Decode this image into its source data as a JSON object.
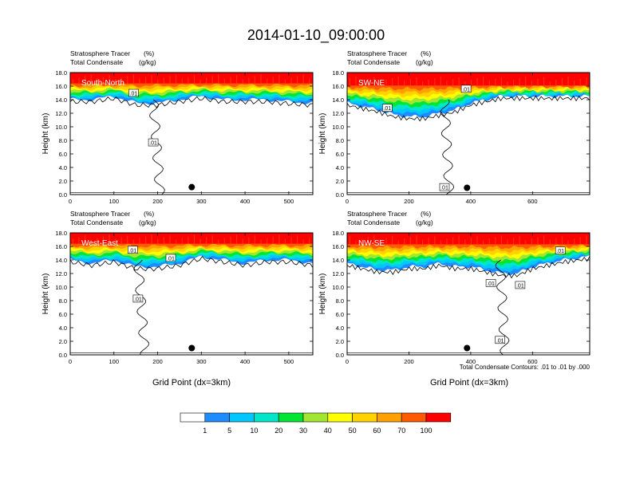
{
  "title": "2014-01-10_09:00:00",
  "panel_header": {
    "line1_left": "Stratosphere Tracer",
    "line1_right": "(%)",
    "line2_left": "Total Condensate",
    "line2_right": "(g/kg)"
  },
  "ylabel": "Height (km)",
  "xlabel": "Grid Point (dx=3km)",
  "contour_note": "Total Condensate Contours: .01 to .01 by .000",
  "contour_label": ".01",
  "colors": {
    "levels": [
      "#ffffff",
      "#1e8cff",
      "#00c8ff",
      "#00e6c8",
      "#00e632",
      "#a0e632",
      "#ffff00",
      "#ffd200",
      "#ffa000",
      "#ff5a00",
      "#ff0000"
    ],
    "contour": "#000000",
    "marker": "#000000"
  },
  "chart_data": [
    {
      "type": "heatmap",
      "name": "South-North",
      "xlim": [
        0,
        555
      ],
      "ylim": [
        0,
        18
      ],
      "xticks": [
        0,
        100,
        200,
        300,
        400,
        500
      ],
      "yticks": [
        0,
        2,
        4,
        6,
        8,
        10,
        12,
        14,
        16,
        18
      ],
      "tracer_band": {
        "x": [
          0,
          50,
          100,
          150,
          200,
          250,
          300,
          350,
          400,
          450,
          500,
          555
        ],
        "bottom_km": [
          14.0,
          14.0,
          14.5,
          13.5,
          13.5,
          14.0,
          14.5,
          14.0,
          14.0,
          14.0,
          13.7,
          13.5
        ],
        "saturated_km": 16.4,
        "top_km": 18
      },
      "marker": {
        "x": 278,
        "y_km": 1.1
      },
      "contour_labels": [
        {
          "x": 145,
          "y_km": 15.0
        },
        {
          "x": 190,
          "y_km": 7.7
        }
      ]
    },
    {
      "type": "heatmap",
      "name": "SW-NE",
      "xlim": [
        0,
        785
      ],
      "ylim": [
        0,
        18
      ],
      "xticks": [
        0,
        200,
        400,
        600
      ],
      "yticks": [
        0,
        2,
        4,
        6,
        8,
        10,
        12,
        14,
        16,
        18
      ],
      "tracer_band": {
        "x": [
          0,
          50,
          100,
          150,
          200,
          250,
          300,
          350,
          400,
          500,
          600,
          700,
          785
        ],
        "bottom_km": [
          13.5,
          13.0,
          12.5,
          11.8,
          11.5,
          11.5,
          12.0,
          12.5,
          13.5,
          14.5,
          14.5,
          14.5,
          14.5
        ],
        "saturated_km": 16.1,
        "top_km": 18
      },
      "marker": {
        "x": 388,
        "y_km": 1.0
      },
      "contour_labels": [
        {
          "x": 385,
          "y_km": 15.6
        },
        {
          "x": 130,
          "y_km": 12.8
        },
        {
          "x": 315,
          "y_km": 1.1
        }
      ]
    },
    {
      "type": "heatmap",
      "name": "West-East",
      "xlim": [
        0,
        555
      ],
      "ylim": [
        0,
        18
      ],
      "xticks": [
        0,
        100,
        200,
        300,
        400,
        500
      ],
      "yticks": [
        0,
        2,
        4,
        6,
        8,
        10,
        12,
        14,
        16,
        18
      ],
      "tracer_band": {
        "x": [
          0,
          50,
          100,
          150,
          200,
          250,
          300,
          350,
          400,
          450,
          500,
          555
        ],
        "bottom_km": [
          14.0,
          13.5,
          14.0,
          13.0,
          13.0,
          13.5,
          14.5,
          14.0,
          13.5,
          14.0,
          14.0,
          13.5
        ],
        "saturated_km": 16.4,
        "top_km": 18
      },
      "marker": {
        "x": 278,
        "y_km": 1.0
      },
      "contour_labels": [
        {
          "x": 143,
          "y_km": 15.5
        },
        {
          "x": 230,
          "y_km": 14.3
        },
        {
          "x": 155,
          "y_km": 8.3
        }
      ]
    },
    {
      "type": "heatmap",
      "name": "NW-SE",
      "xlim": [
        0,
        785
      ],
      "ylim": [
        0,
        18
      ],
      "xticks": [
        0,
        200,
        400,
        600
      ],
      "yticks": [
        0,
        2,
        4,
        6,
        8,
        10,
        12,
        14,
        16,
        18
      ],
      "tracer_band": {
        "x": [
          0,
          50,
          100,
          150,
          200,
          250,
          300,
          350,
          400,
          450,
          500,
          550,
          600,
          650,
          700,
          785
        ],
        "bottom_km": [
          13.5,
          13.0,
          12.5,
          12.5,
          13.0,
          13.0,
          13.5,
          13.0,
          13.0,
          12.5,
          12.0,
          12.0,
          13.0,
          13.5,
          14.0,
          14.5
        ],
        "saturated_km": 16.3,
        "top_km": 18
      },
      "marker": {
        "x": 388,
        "y_km": 1.0
      },
      "contour_labels": [
        {
          "x": 690,
          "y_km": 15.4
        },
        {
          "x": 465,
          "y_km": 10.6
        },
        {
          "x": 560,
          "y_km": 10.3
        },
        {
          "x": 495,
          "y_km": 2.2
        }
      ]
    },
    {
      "type": "colorbar",
      "tick_labels": [
        "1",
        "5",
        "10",
        "20",
        "30",
        "40",
        "50",
        "60",
        "70",
        "100"
      ]
    }
  ]
}
